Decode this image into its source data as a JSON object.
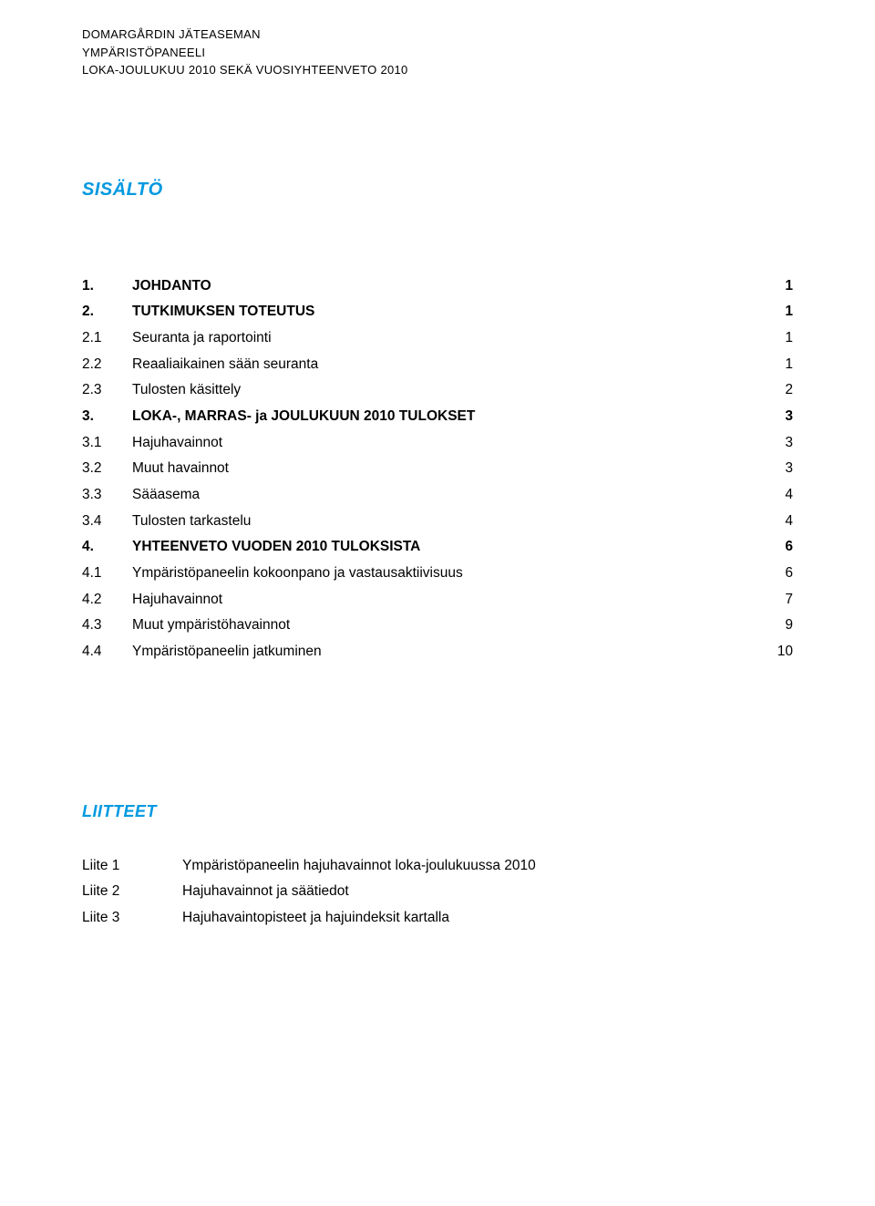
{
  "colors": {
    "heading": "#0099e0",
    "text": "#000000",
    "background": "#ffffff"
  },
  "typography": {
    "font_family": "Verdana",
    "header_fontsize": 13,
    "section_title_fontsize": 20,
    "body_fontsize": 15.5,
    "liitteet_title_fontsize": 18
  },
  "header": {
    "line1": "DOMARGÅRDIN JÄTEASEMAN",
    "line2": "YMPÄRISTÖPANEELI",
    "line3": "LOKA-JOULUKUU 2010 SEKÄ VUOSIYHTEENVETO 2010"
  },
  "sisalto_title": "SISÄLTÖ",
  "toc": [
    {
      "num": "1.",
      "title": "JOHDANTO",
      "page": "1",
      "bold": true
    },
    {
      "num": "2.",
      "title": "TUTKIMUKSEN TOTEUTUS",
      "page": "1",
      "bold": true
    },
    {
      "num": "2.1",
      "title": "Seuranta ja raportointi",
      "page": "1",
      "bold": false
    },
    {
      "num": "2.2",
      "title": "Reaaliaikainen sään seuranta",
      "page": "1",
      "bold": false
    },
    {
      "num": "2.3",
      "title": "Tulosten käsittely",
      "page": "2",
      "bold": false
    },
    {
      "num": "3.",
      "title": "LOKA-, MARRAS- ja JOULUKUUN 2010 TULOKSET",
      "page": "3",
      "bold": true
    },
    {
      "num": "3.1",
      "title": "Hajuhavainnot",
      "page": "3",
      "bold": false
    },
    {
      "num": "3.2",
      "title": "Muut havainnot",
      "page": "3",
      "bold": false
    },
    {
      "num": "3.3",
      "title": "Sääasema",
      "page": "4",
      "bold": false
    },
    {
      "num": "3.4",
      "title": "Tulosten tarkastelu",
      "page": "4",
      "bold": false
    },
    {
      "num": "4.",
      "title": "YHTEENVETO VUODEN 2010 TULOKSISTA",
      "page": "6",
      "bold": true
    },
    {
      "num": "4.1",
      "title": "Ympäristöpaneelin kokoonpano ja vastausaktiivisuus",
      "page": "6",
      "bold": false
    },
    {
      "num": "4.2",
      "title": "Hajuhavainnot",
      "page": "7",
      "bold": false
    },
    {
      "num": "4.3",
      "title": "Muut ympäristöhavainnot",
      "page": "9",
      "bold": false
    },
    {
      "num": "4.4",
      "title": "Ympäristöpaneelin jatkuminen",
      "page": "10",
      "bold": false
    }
  ],
  "liitteet_title": "LIITTEET",
  "liitteet": [
    {
      "label": "Liite 1",
      "desc": "Ympäristöpaneelin hajuhavainnot loka-joulukuussa 2010"
    },
    {
      "label": "Liite 2",
      "desc": "Hajuhavainnot ja säätiedot"
    },
    {
      "label": "Liite 3",
      "desc": "Hajuhavaintopisteet ja hajuindeksit kartalla"
    }
  ]
}
